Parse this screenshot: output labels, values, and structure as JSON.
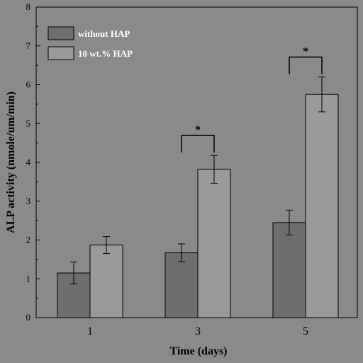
{
  "chart_data": {
    "type": "bar",
    "xlabel": "Time (days)",
    "ylabel": "ALP activity (nmole/um/min)",
    "categories": [
      "1",
      "3",
      "5"
    ],
    "ylim": [
      0,
      8
    ],
    "yticks": [
      "0",
      "1",
      "2",
      "3",
      "4",
      "5",
      "6",
      "7",
      "8"
    ],
    "series": [
      {
        "name": "without HAP",
        "values": [
          1.15,
          1.67,
          2.45
        ],
        "errors": [
          0.28,
          0.23,
          0.32
        ],
        "color": "#6e6e6e"
      },
      {
        "name": "10 wt.% HAP",
        "values": [
          1.87,
          3.82,
          5.75
        ],
        "errors": [
          0.22,
          0.36,
          0.45
        ],
        "color": "#9a9a9a"
      }
    ],
    "significance": [
      {
        "category_index": 1,
        "label": "*"
      },
      {
        "category_index": 2,
        "label": "*"
      }
    ],
    "legend_position": "top-left",
    "grid": false
  }
}
